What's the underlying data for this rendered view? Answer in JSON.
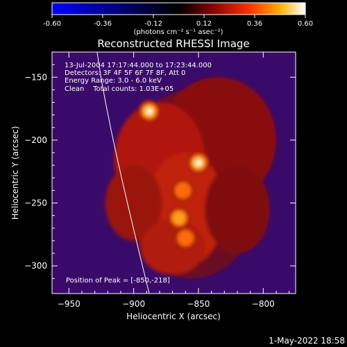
{
  "chart_data": {
    "type": "heatmap",
    "title": "Reconstructed RHESSI Image",
    "xlabel": "Heliocentric X (arcsec)",
    "ylabel": "Heliocentric Y (arcsec)",
    "xlim": [
      -963,
      -775
    ],
    "ylim": [
      -322,
      -130
    ],
    "x_ticks": [
      -950,
      -900,
      -850,
      -800
    ],
    "y_ticks": [
      -150,
      -200,
      -250,
      -300
    ],
    "colorbar": {
      "range": [
        -0.6,
        0.6
      ],
      "ticks": [
        -0.6,
        -0.36,
        -0.12,
        0.12,
        0.36,
        0.6
      ],
      "tick_labels": [
        "-0.60",
        "-0.36",
        "-0.12",
        "0.12",
        "0.36",
        "0.60"
      ],
      "units_label": "(photons cm⁻² s⁻¹ asec⁻²)"
    },
    "annotations": {
      "time_range": "13-Jul-2004 17:17:44.000 to 17:23:44.000",
      "detectors": "Detectors: 3F 4F 5F 6F 7F 8F, Att 0",
      "energy": "Energy Range: 3.0 - 6.0 keV",
      "clean": "Clean    Total counts: 1.03E+05",
      "peak": "Position of Peak = [-850,-218]"
    },
    "peak_position": [
      -850,
      -218
    ],
    "sources": [
      {
        "x": -888,
        "y": -177,
        "peak": 0.58
      },
      {
        "x": -850,
        "y": -218,
        "peak": 0.6
      },
      {
        "x": -862,
        "y": -240,
        "peak": 0.4
      },
      {
        "x": -865,
        "y": -262,
        "peak": 0.45
      },
      {
        "x": -860,
        "y": -278,
        "peak": 0.42
      }
    ],
    "grid": false
  },
  "footer": {
    "date": "1-May-2022 18:58"
  }
}
